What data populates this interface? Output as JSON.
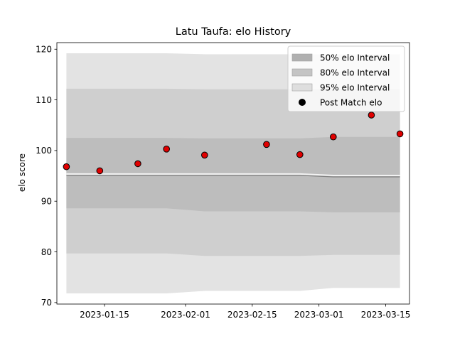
{
  "chart_data": {
    "type": "scatter",
    "title": "Latu Taufa: elo History",
    "xlabel": "",
    "ylabel": "elo score",
    "ylim": [
      69.7,
      121.3
    ],
    "xlim": [
      "2023-01-05",
      "2023-03-20"
    ],
    "x_ticks": [
      "2023-01-15",
      "2023-02-01",
      "2023-02-15",
      "2023-03-01",
      "2023-03-15"
    ],
    "y_ticks": [
      70,
      80,
      90,
      100,
      110,
      120
    ],
    "legend_position": "upper-right",
    "series": [
      {
        "name": "Post Match elo",
        "kind": "scatter",
        "color": "#e00000",
        "points": [
          {
            "x": "2023-01-07",
            "y": 96.8
          },
          {
            "x": "2023-01-14",
            "y": 96.0
          },
          {
            "x": "2023-01-22",
            "y": 97.4
          },
          {
            "x": "2023-01-28",
            "y": 100.3
          },
          {
            "x": "2023-02-05",
            "y": 99.1
          },
          {
            "x": "2023-02-18",
            "y": 101.2
          },
          {
            "x": "2023-02-25",
            "y": 99.2
          },
          {
            "x": "2023-03-04",
            "y": 102.7
          },
          {
            "x": "2023-03-12",
            "y": 107.0
          },
          {
            "x": "2023-03-18",
            "y": 103.3
          }
        ]
      }
    ],
    "bands": [
      {
        "name": "95% elo Interval",
        "color": "#e3e3e3",
        "points": [
          {
            "x": "2023-01-07",
            "low": 71.8,
            "high": 119.2
          },
          {
            "x": "2023-01-28",
            "low": 71.8,
            "high": 119.2
          },
          {
            "x": "2023-02-05",
            "low": 72.3,
            "high": 119.0
          },
          {
            "x": "2023-02-25",
            "low": 72.3,
            "high": 119.0
          },
          {
            "x": "2023-03-04",
            "low": 72.9,
            "high": 119.0
          },
          {
            "x": "2023-03-18",
            "low": 72.9,
            "high": 119.0
          }
        ]
      },
      {
        "name": "80% elo Interval",
        "color": "#cfcfcf",
        "points": [
          {
            "x": "2023-01-07",
            "low": 79.7,
            "high": 112.2
          },
          {
            "x": "2023-01-28",
            "low": 79.7,
            "high": 112.2
          },
          {
            "x": "2023-02-05",
            "low": 79.2,
            "high": 112.1
          },
          {
            "x": "2023-02-25",
            "low": 79.2,
            "high": 112.1
          },
          {
            "x": "2023-03-04",
            "low": 79.4,
            "high": 112.1
          },
          {
            "x": "2023-03-18",
            "low": 79.4,
            "high": 112.1
          }
        ]
      },
      {
        "name": "50% elo Interval",
        "color": "#bdbdbd",
        "points": [
          {
            "x": "2023-01-07",
            "low": 88.6,
            "high": 102.5
          },
          {
            "x": "2023-01-28",
            "low": 88.6,
            "high": 102.5
          },
          {
            "x": "2023-02-05",
            "low": 88.0,
            "high": 102.4
          },
          {
            "x": "2023-02-25",
            "low": 88.0,
            "high": 102.4
          },
          {
            "x": "2023-03-04",
            "low": 87.8,
            "high": 102.7
          },
          {
            "x": "2023-03-18",
            "low": 87.8,
            "high": 102.7
          }
        ]
      }
    ],
    "mean_line": {
      "color": "#808080",
      "points": [
        {
          "x": "2023-01-07",
          "y": 95.1
        },
        {
          "x": "2023-02-25",
          "y": 95.1
        },
        {
          "x": "2023-03-04",
          "y": 94.8
        },
        {
          "x": "2023-03-18",
          "y": 94.8
        }
      ]
    },
    "legend": [
      {
        "label": "50% elo Interval",
        "swatch": "band",
        "color": "#b0b0b0"
      },
      {
        "label": "80% elo Interval",
        "swatch": "band",
        "color": "#c4c4c4"
      },
      {
        "label": "95% elo Interval",
        "swatch": "band",
        "color": "#dedede"
      },
      {
        "label": "Post Match elo",
        "swatch": "marker",
        "color": "#000000"
      }
    ]
  }
}
